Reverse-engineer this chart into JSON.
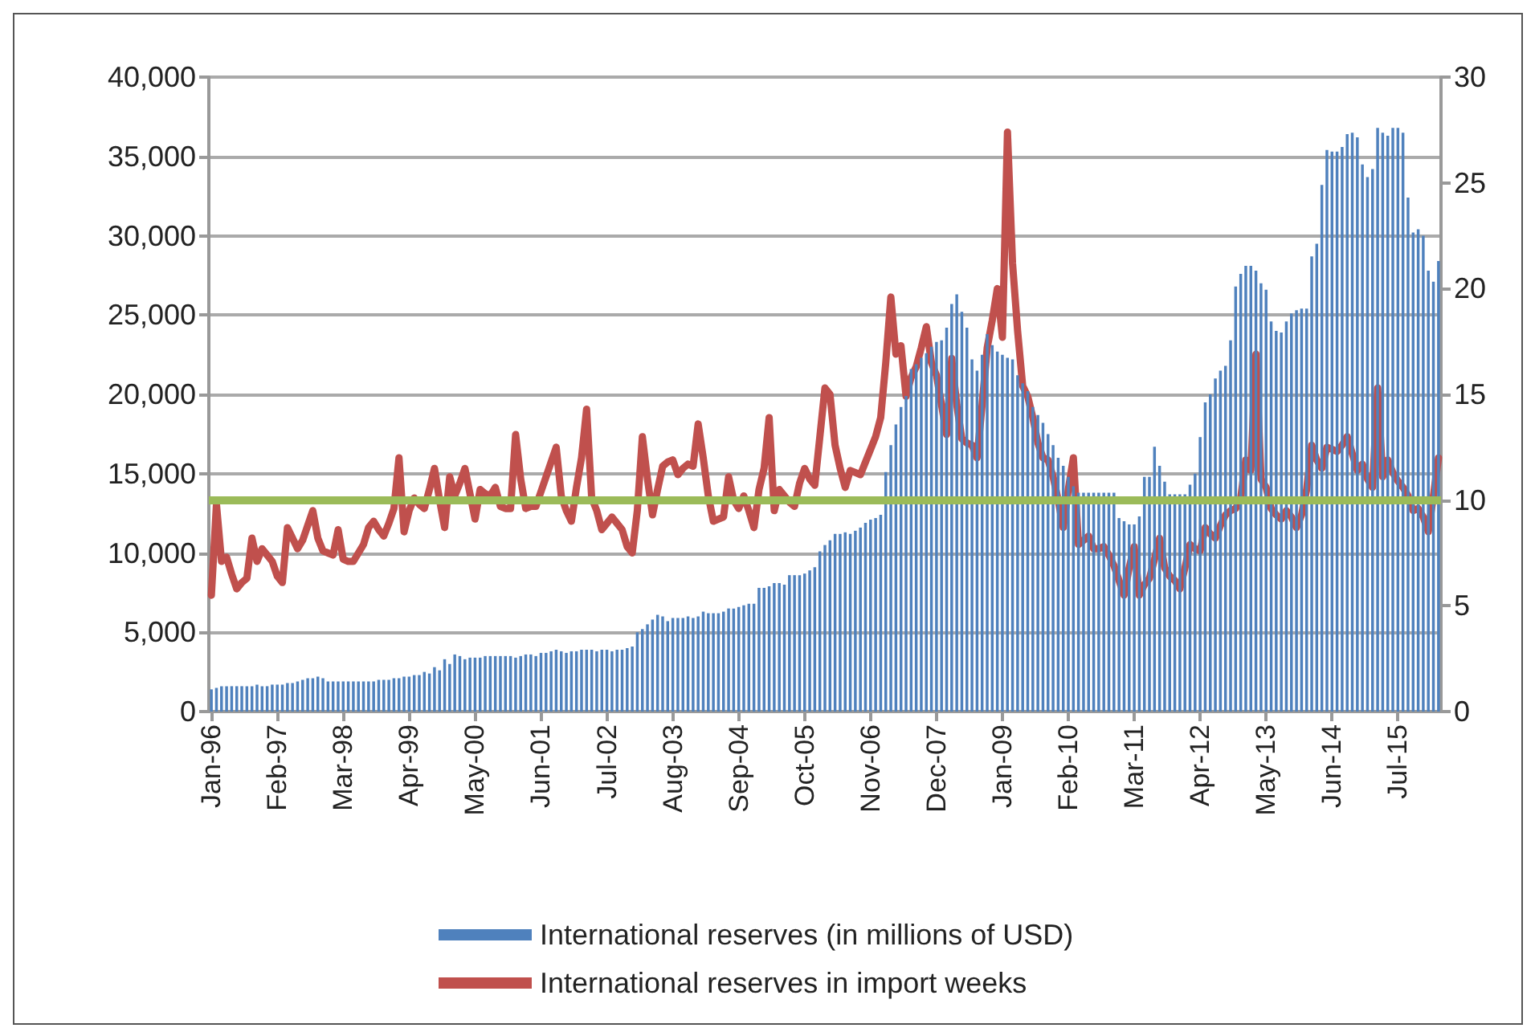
{
  "chart_data": {
    "type": "bar",
    "categories": [
      "Jan-96",
      null,
      null,
      null,
      null,
      null,
      null,
      null,
      null,
      null,
      null,
      null,
      null,
      "Feb-97",
      null,
      null,
      null,
      null,
      null,
      null,
      null,
      null,
      null,
      null,
      null,
      null,
      "Mar-98",
      null,
      null,
      null,
      null,
      null,
      null,
      null,
      null,
      null,
      null,
      null,
      null,
      "Apr-99",
      null,
      null,
      null,
      null,
      null,
      null,
      null,
      null,
      null,
      null,
      null,
      null,
      "May-00",
      null,
      null,
      null,
      null,
      null,
      null,
      null,
      null,
      null,
      null,
      null,
      null,
      "Jun-01",
      null,
      null,
      null,
      null,
      null,
      null,
      null,
      null,
      null,
      null,
      null,
      null,
      "Jul-02",
      null,
      null,
      null,
      null,
      null,
      null,
      null,
      null,
      null,
      null,
      null,
      null,
      "Aug-03",
      null,
      null,
      null,
      null,
      null,
      null,
      null,
      null,
      null,
      null,
      null,
      null,
      "Sep-04",
      null,
      null,
      null,
      null,
      null,
      null,
      null,
      null,
      null,
      null,
      null,
      null,
      "Oct-05",
      null,
      null,
      null,
      null,
      null,
      null,
      null,
      null,
      null,
      null,
      null,
      null,
      "Nov-06",
      null,
      null,
      null,
      null,
      null,
      null,
      null,
      null,
      null,
      null,
      null,
      null,
      "Dec-07",
      null,
      null,
      null,
      null,
      null,
      null,
      null,
      null,
      null,
      null,
      null,
      null,
      "Jan-09",
      null,
      null,
      null,
      null,
      null,
      null,
      null,
      null,
      null,
      null,
      null,
      null,
      "Feb-10",
      null,
      null,
      null,
      null,
      null,
      null,
      null,
      null,
      null,
      null,
      null,
      null,
      "Mar-11",
      null,
      null,
      null,
      null,
      null,
      null,
      null,
      null,
      null,
      null,
      null,
      null,
      "Apr-12",
      null,
      null,
      null,
      null,
      null,
      null,
      null,
      null,
      null,
      null,
      null,
      null,
      "May-13",
      null,
      null,
      null,
      null,
      null,
      null,
      null,
      null,
      null,
      null,
      null,
      null,
      "Jun-14",
      null,
      null,
      null,
      null,
      null,
      null,
      null,
      null,
      null,
      null,
      null,
      null,
      "Jul-15",
      null,
      null,
      null,
      null,
      null,
      null,
      null,
      null
    ],
    "series": [
      {
        "name": "International reserves (in millions of USD)",
        "color": "#4f81bd",
        "values": [
          1400,
          1500,
          1600,
          1600,
          1600,
          1600,
          1600,
          1600,
          1600,
          1700,
          1600,
          1600,
          1700,
          1700,
          1700,
          1800,
          1800,
          1900,
          2000,
          2100,
          2100,
          2200,
          2100,
          1900,
          1900,
          1900,
          1900,
          1900,
          1900,
          1900,
          1900,
          1900,
          1900,
          2000,
          2000,
          2000,
          2100,
          2100,
          2200,
          2200,
          2300,
          2300,
          2500,
          2400,
          2800,
          2600,
          3300,
          3000,
          3600,
          3500,
          3300,
          3400,
          3400,
          3400,
          3500,
          3500,
          3500,
          3500,
          3500,
          3500,
          3400,
          3500,
          3600,
          3600,
          3500,
          3700,
          3700,
          3800,
          3900,
          3800,
          3700,
          3800,
          3800,
          3900,
          3900,
          3900,
          3800,
          3900,
          3900,
          3800,
          3900,
          3900,
          4000,
          4100,
          5000,
          5200,
          5500,
          5800,
          6100,
          6000,
          5700,
          5900,
          5900,
          5900,
          6000,
          5900,
          6000,
          6300,
          6200,
          6200,
          6200,
          6300,
          6500,
          6500,
          6600,
          6700,
          6800,
          6800,
          7800,
          7800,
          7900,
          8100,
          8100,
          8000,
          8600,
          8600,
          8600,
          8700,
          8900,
          9100,
          10100,
          10500,
          10800,
          11200,
          11200,
          11300,
          11200,
          11400,
          11600,
          11900,
          12100,
          12200,
          12400,
          15100,
          16800,
          18100,
          19200,
          19900,
          21600,
          21900,
          22300,
          22600,
          23000,
          23300,
          23400,
          24200,
          25700,
          26300,
          25200,
          24200,
          22200,
          21500,
          22500,
          23800,
          23100,
          22700,
          22500,
          22300,
          22200,
          21200,
          20700,
          20200,
          19200,
          18700,
          18200,
          17500,
          16800,
          16000,
          15500,
          14800,
          14200,
          13800,
          13800,
          13800,
          13800,
          13800,
          13800,
          13800,
          13800,
          12200,
          12000,
          11800,
          11800,
          12300,
          14800,
          14800,
          16700,
          15500,
          14500,
          13700,
          13700,
          13700,
          13700,
          14300,
          15000,
          17300,
          19500,
          20000,
          21000,
          21500,
          21800,
          23400,
          26800,
          27600,
          28100,
          28100,
          27800,
          27000,
          26600,
          24600,
          24000,
          23900,
          24600,
          25100,
          25300,
          25400,
          25400,
          28700,
          29500,
          33200,
          35400,
          35300,
          35300,
          35600,
          36400,
          36500,
          36200,
          34500,
          33700,
          34200,
          36800,
          36500,
          36300,
          36800,
          36800,
          36500,
          32400,
          30200,
          30400,
          30000,
          27800,
          27100,
          28400
        ]
      },
      {
        "name": "International reserves in import weeks",
        "type": "line",
        "axis": "y2",
        "color": "#c0504d",
        "values": [
          5.5,
          9.8,
          7.1,
          7.3,
          6.5,
          5.8,
          6.1,
          6.3,
          8.2,
          7.1,
          7.7,
          7.4,
          7.1,
          6.4,
          6.1,
          8.7,
          8.2,
          7.7,
          8.1,
          8.8,
          9.5,
          8.2,
          7.6,
          7.5,
          7.4,
          8.6,
          7.2,
          7.1,
          7.1,
          7.5,
          7.9,
          8.7,
          9.0,
          8.6,
          8.3,
          8.9,
          9.6,
          12.0,
          8.5,
          9.5,
          10.1,
          9.8,
          9.6,
          10.5,
          11.5,
          10.0,
          8.7,
          11.1,
          10.2,
          10.8,
          11.5,
          10.3,
          9.1,
          10.5,
          10.3,
          10.2,
          10.6,
          9.7,
          9.6,
          9.6,
          13.1,
          11.0,
          9.6,
          9.7,
          9.7,
          10.4,
          11.1,
          11.8,
          12.5,
          10.2,
          9.5,
          9.0,
          10.6,
          12.0,
          14.3,
          10.1,
          9.5,
          8.6,
          8.9,
          9.2,
          8.9,
          8.6,
          7.8,
          7.5,
          9.5,
          13.0,
          11.0,
          9.3,
          10.5,
          11.6,
          11.8,
          11.9,
          11.2,
          11.5,
          11.7,
          11.6,
          13.6,
          12.0,
          10.2,
          9.0,
          9.1,
          9.2,
          11.1,
          10.0,
          9.6,
          10.2,
          9.5,
          8.7,
          10.5,
          11.5,
          13.9,
          9.5,
          10.5,
          10.2,
          9.9,
          9.7,
          10.8,
          11.5,
          11.0,
          10.7,
          13.0,
          15.3,
          15.0,
          12.6,
          11.5,
          10.6,
          11.4,
          11.3,
          11.2,
          11.8,
          12.4,
          13.0,
          13.9,
          16.5,
          19.6,
          16.9,
          17.3,
          14.9,
          15.8,
          16.3,
          17.2,
          18.2,
          16.5,
          15.9,
          14.5,
          13.1,
          16.7,
          14.5,
          12.9,
          12.7,
          12.6,
          12.0,
          14.5,
          17.2,
          18.5,
          20.0,
          17.7,
          27.4,
          21.2,
          18.0,
          15.4,
          14.9,
          13.9,
          12.7,
          12.0,
          11.9,
          11.1,
          10.0,
          8.7,
          10.5,
          12.0,
          7.9,
          8.1,
          8.3,
          7.7,
          7.7,
          7.8,
          7.4,
          6.9,
          6.2,
          5.5,
          6.8,
          7.8,
          5.5,
          6.0,
          6.3,
          7.2,
          8.2,
          6.8,
          6.4,
          6.2,
          5.8,
          6.8,
          7.9,
          7.7,
          7.6,
          8.7,
          8.4,
          8.2,
          8.8,
          9.3,
          9.5,
          9.6,
          10.1,
          11.9,
          11.4,
          16.9,
          11.0,
          10.6,
          9.6,
          9.3,
          9.1,
          9.5,
          9.2,
          8.7,
          9.3,
          10.5,
          12.6,
          11.9,
          11.5,
          12.5,
          12.4,
          12.3,
          12.6,
          13.0,
          12.2,
          11.4,
          11.7,
          11.0,
          10.6,
          15.3,
          11.1,
          11.9,
          11.3,
          10.9,
          10.6,
          10.2,
          9.5,
          9.6,
          9.2,
          8.5,
          10.2,
          12.0
        ]
      }
    ],
    "ylim": [
      0,
      40000
    ],
    "yticks": [
      {
        "value": 0,
        "label": "0"
      },
      {
        "value": 5000,
        "label": "5,000"
      },
      {
        "value": 10000,
        "label": "10,000"
      },
      {
        "value": 15000,
        "label": "15,000"
      },
      {
        "value": 20000,
        "label": "20,000"
      },
      {
        "value": 25000,
        "label": "25,000"
      },
      {
        "value": 30000,
        "label": "30,000"
      },
      {
        "value": 35000,
        "label": "35,000"
      },
      {
        "value": 40000,
        "label": "40,000"
      }
    ],
    "y2lim": [
      0,
      30
    ],
    "y2ticks": [
      0,
      5,
      10,
      15,
      20,
      25,
      30
    ],
    "ref_lines": [
      {
        "axis": "y2",
        "value": 10,
        "color": "#9bbb59"
      }
    ],
    "grid": "y",
    "legend": "bottom",
    "marker": "none"
  }
}
